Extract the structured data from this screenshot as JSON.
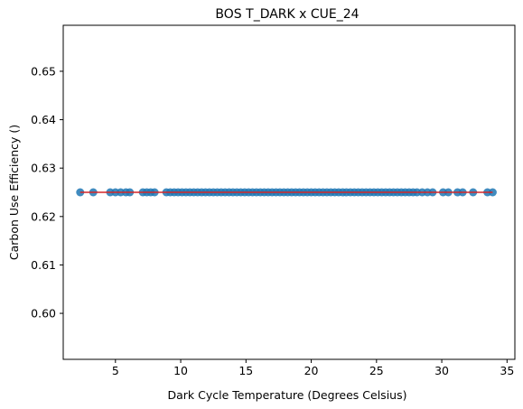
{
  "chart_data": {
    "type": "scatter",
    "title": "BOS T_DARK x CUE_24",
    "xlabel": "Dark Cycle Temperature (Degrees Celsius)",
    "ylabel": "Carbon Use Efficiency ()",
    "xlim": [
      1.0,
      35.6
    ],
    "ylim": [
      0.5905,
      0.6595
    ],
    "xticks": [
      5,
      10,
      15,
      20,
      25,
      30,
      35
    ],
    "yticks": [
      0.6,
      0.61,
      0.62,
      0.63,
      0.64,
      0.65
    ],
    "xtick_labels": [
      "5",
      "10",
      "15",
      "20",
      "25",
      "30",
      "35"
    ],
    "ytick_labels": [
      "0.60",
      "0.61",
      "0.62",
      "0.63",
      "0.64",
      "0.65"
    ],
    "series": [
      {
        "marker": "circle",
        "color": "#1f77b4",
        "x": [
          2.3,
          3.3,
          4.6,
          5.0,
          5.4,
          5.8,
          6.1,
          7.1,
          7.4,
          7.7,
          8.0,
          8.9,
          9.2,
          9.5,
          9.8,
          10.1,
          10.4,
          10.7,
          11.0,
          11.3,
          11.6,
          11.9,
          12.2,
          12.5,
          12.8,
          13.1,
          13.4,
          13.7,
          14.0,
          14.3,
          14.6,
          14.9,
          15.2,
          15.5,
          15.8,
          16.1,
          16.4,
          16.7,
          17.0,
          17.3,
          17.6,
          17.9,
          18.2,
          18.5,
          18.8,
          19.1,
          19.4,
          19.7,
          20.0,
          20.3,
          20.6,
          20.9,
          21.2,
          21.5,
          21.8,
          22.1,
          22.4,
          22.7,
          23.0,
          23.3,
          23.6,
          23.9,
          24.2,
          24.5,
          24.8,
          25.1,
          25.4,
          25.7,
          26.0,
          26.3,
          26.6,
          26.9,
          27.2,
          27.5,
          27.8,
          28.1,
          28.5,
          28.9,
          29.3,
          30.1,
          30.5,
          31.2,
          31.6,
          32.4,
          33.5,
          33.9
        ],
        "y": [
          0.625,
          0.625,
          0.625,
          0.625,
          0.625,
          0.625,
          0.625,
          0.625,
          0.625,
          0.625,
          0.625,
          0.625,
          0.625,
          0.625,
          0.625,
          0.625,
          0.625,
          0.625,
          0.625,
          0.625,
          0.625,
          0.625,
          0.625,
          0.625,
          0.625,
          0.625,
          0.625,
          0.625,
          0.625,
          0.625,
          0.625,
          0.625,
          0.625,
          0.625,
          0.625,
          0.625,
          0.625,
          0.625,
          0.625,
          0.625,
          0.625,
          0.625,
          0.625,
          0.625,
          0.625,
          0.625,
          0.625,
          0.625,
          0.625,
          0.625,
          0.625,
          0.625,
          0.625,
          0.625,
          0.625,
          0.625,
          0.625,
          0.625,
          0.625,
          0.625,
          0.625,
          0.625,
          0.625,
          0.625,
          0.625,
          0.625,
          0.625,
          0.625,
          0.625,
          0.625,
          0.625,
          0.625,
          0.625,
          0.625,
          0.625,
          0.625,
          0.625,
          0.625,
          0.625,
          0.625,
          0.625,
          0.625,
          0.625,
          0.625,
          0.625,
          0.625
        ]
      },
      {
        "type": "line",
        "color": "#d62728",
        "x": [
          2.3,
          33.9
        ],
        "y": [
          0.625,
          0.625
        ]
      }
    ],
    "grid": false,
    "legend": "none"
  }
}
